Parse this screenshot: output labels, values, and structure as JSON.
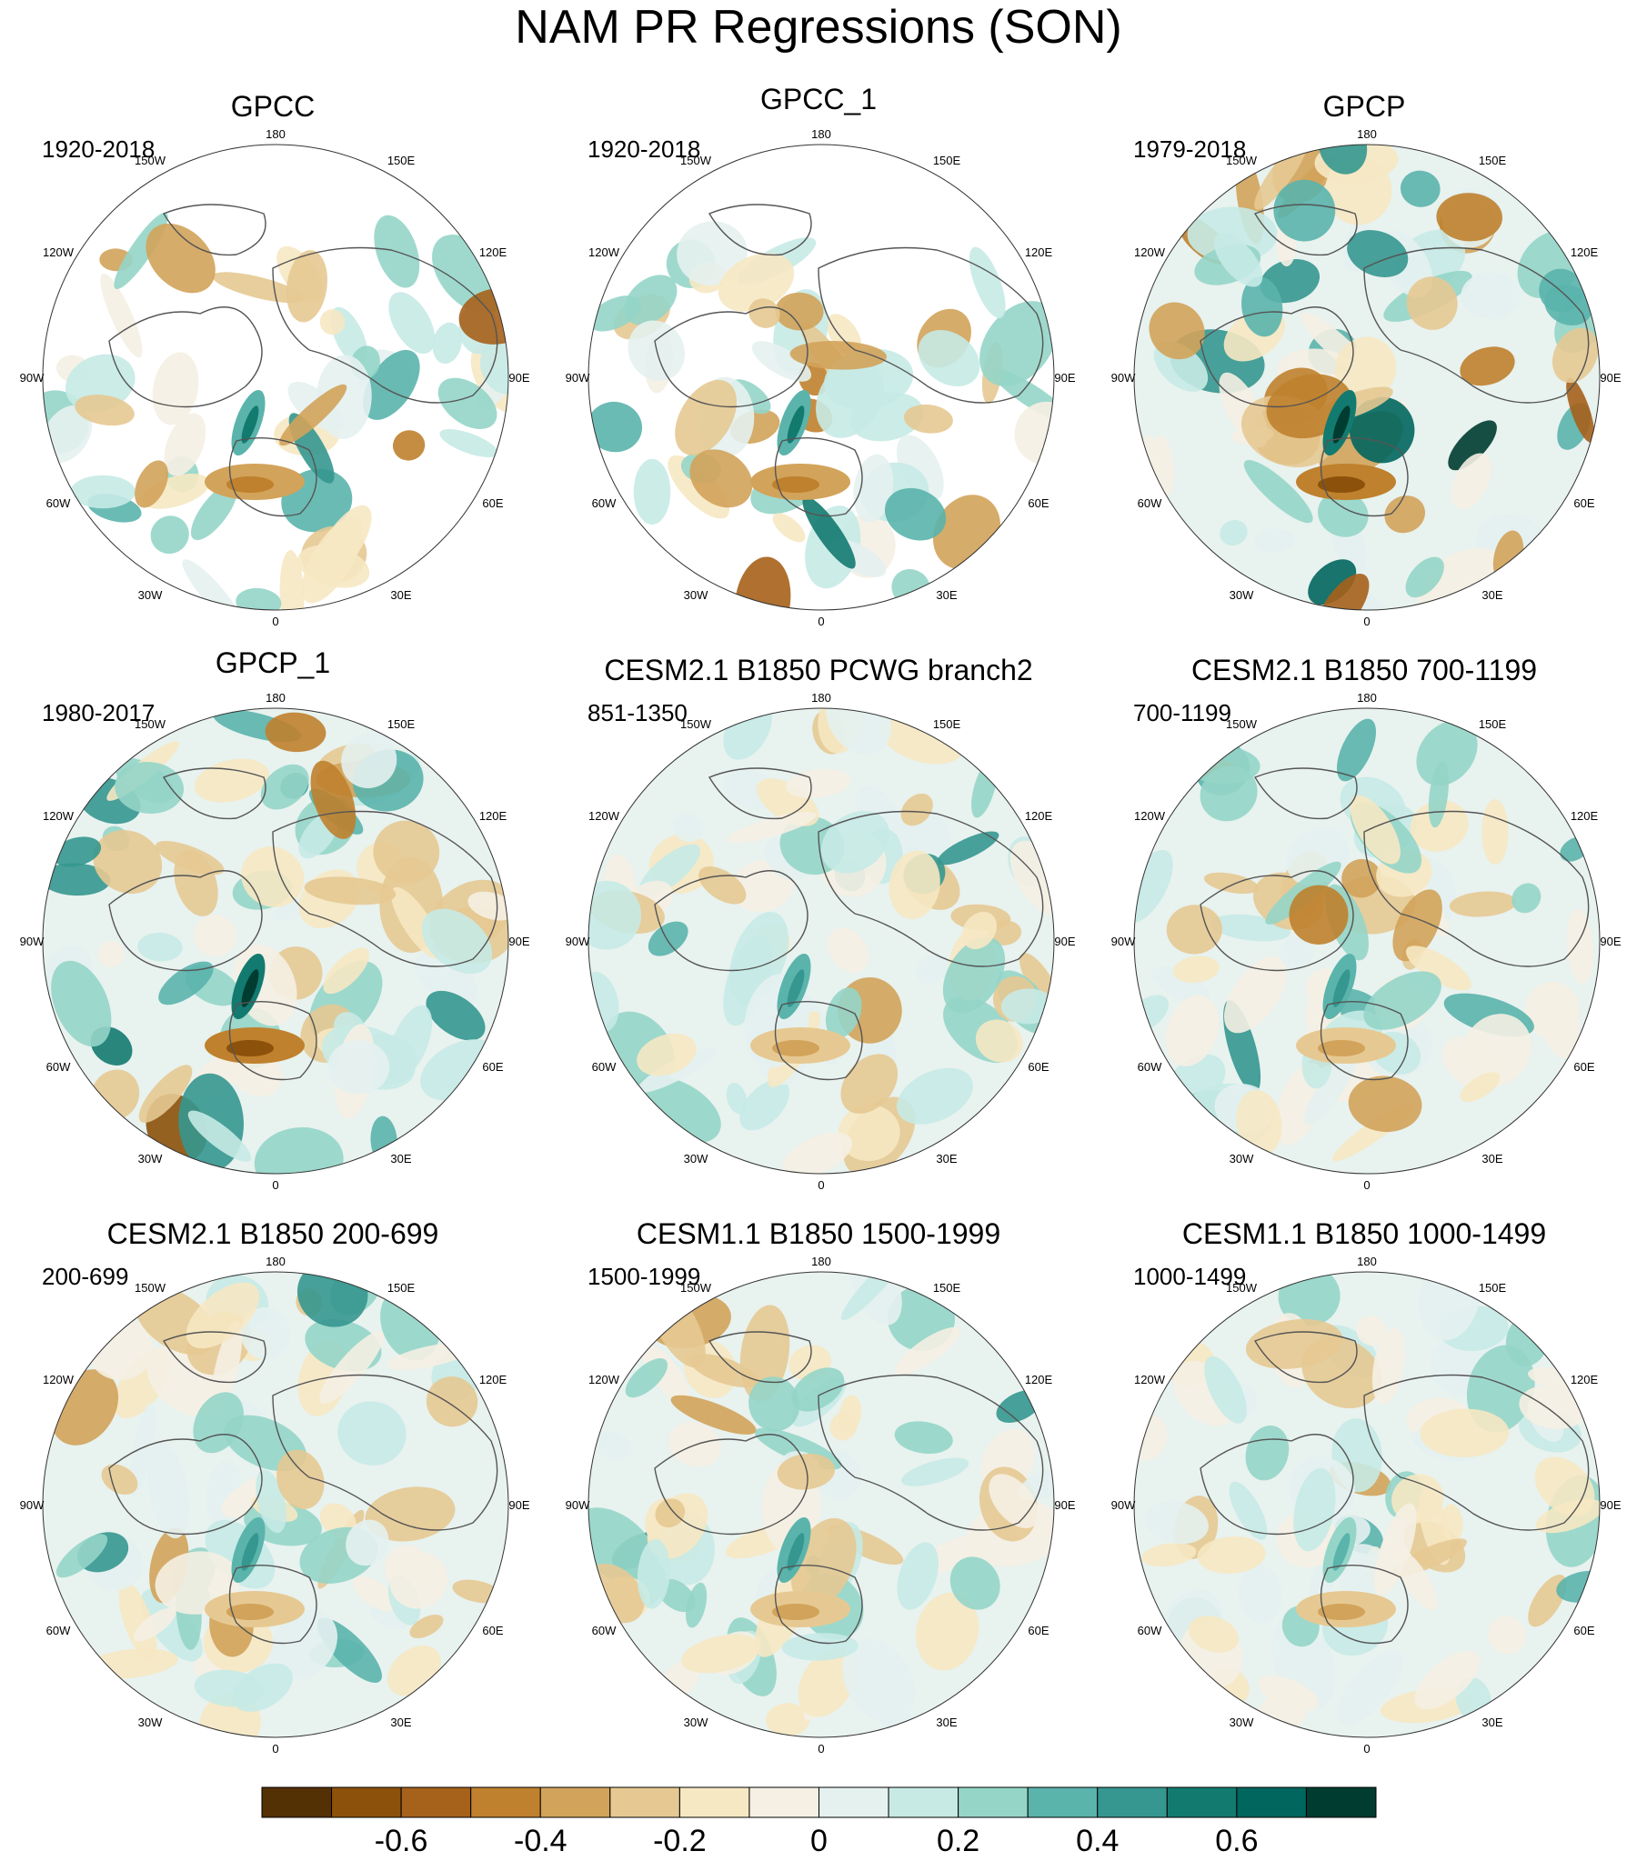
{
  "title": "NAM PR Regressions (SON)",
  "panels": [
    {
      "title": "GPCC",
      "period": "1920-2018",
      "coverage": "land",
      "intensity": 0.75
    },
    {
      "title": "GPCC_1",
      "period": "1920-2018",
      "coverage": "land",
      "intensity": 0.75
    },
    {
      "title": "GPCP",
      "period": "1979-2018",
      "coverage": "full",
      "intensity": 1.0
    },
    {
      "title": "GPCP_1",
      "period": "1980-2017",
      "coverage": "full",
      "intensity": 1.0
    },
    {
      "title": "CESM2.1 B1850 PCWG branch2",
      "period": "851-1350",
      "coverage": "full",
      "intensity": 0.6
    },
    {
      "title": "CESM2.1 B1850 700-1199",
      "period": "700-1199",
      "coverage": "full",
      "intensity": 0.6
    },
    {
      "title": "CESM2.1 B1850 200-699",
      "period": "200-699",
      "coverage": "full",
      "intensity": 0.6
    },
    {
      "title": "CESM1.1 B1850 1500-1999",
      "period": "1500-1999",
      "coverage": "full",
      "intensity": 0.6
    },
    {
      "title": "CESM1.1 B1850 1000-1499",
      "period": "1000-1499",
      "coverage": "full",
      "intensity": 0.55
    }
  ],
  "longitude_labels": [
    "180",
    "150E",
    "120E",
    "90E",
    "60E",
    "30E",
    "0",
    "30W",
    "60W",
    "90W",
    "120W",
    "150W"
  ],
  "colorbar": {
    "colors": [
      "#543005",
      "#8c510a",
      "#a6611a",
      "#bf812d",
      "#d2a35a",
      "#e6c992",
      "#f6e8c3",
      "#f5f0e3",
      "#e4f1ef",
      "#c7eae5",
      "#95d5c8",
      "#5ab4ac",
      "#35978f",
      "#137a70",
      "#01665e",
      "#003c30"
    ],
    "labels": [
      "-0.6",
      "-0.4",
      "-0.2",
      "0",
      "0.2",
      "0.4",
      "0.6"
    ],
    "label_values": [
      -0.6,
      -0.4,
      -0.2,
      0,
      0.2,
      0.4,
      0.6
    ],
    "min": -0.8,
    "max": 0.8
  },
  "colors": {
    "positive_accent": "#01665e",
    "negative_accent": "#8c510a",
    "coastline": "#555555"
  }
}
